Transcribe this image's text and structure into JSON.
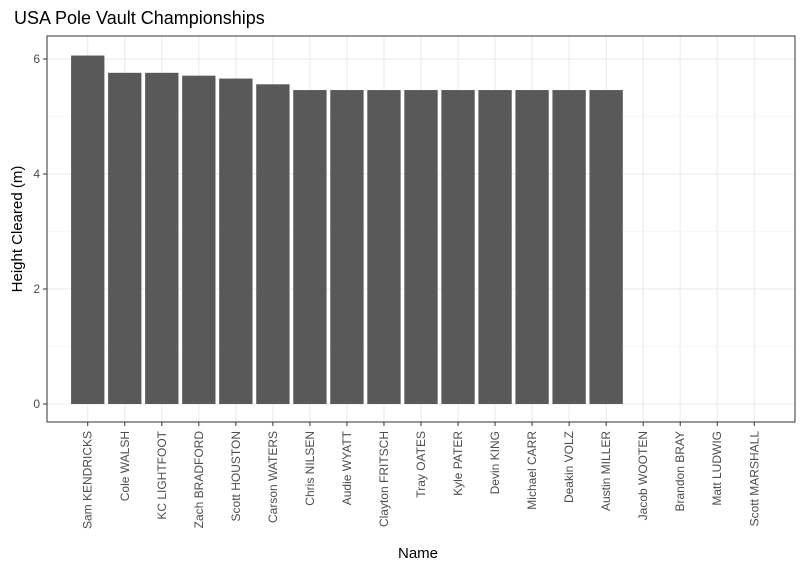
{
  "chart_data": {
    "type": "bar",
    "title": "USA Pole Vault Championships",
    "xlabel": "Name",
    "ylabel": "Height Cleared (m)",
    "categories": [
      "Sam KENDRICKS",
      "Cole WALSH",
      "KC LIGHTFOOT",
      "Zach BRADFORD",
      "Scott HOUSTON",
      "Carson WATERS",
      "Chris NILSEN",
      "Audie WYATT",
      "Clayton FRITSCH",
      "Tray OATES",
      "Kyle PATER",
      "Devin KING",
      "Michael CARR",
      "Deakin VOLZ",
      "Austin MILLER",
      "Jacob WOOTEN",
      "Brandon BRAY",
      "Matt LUDWIG",
      "Scott MARSHALL"
    ],
    "values": [
      6.06,
      5.76,
      5.76,
      5.71,
      5.66,
      5.56,
      5.46,
      5.46,
      5.46,
      5.46,
      5.46,
      5.46,
      5.46,
      5.46,
      5.46,
      0,
      0,
      0,
      0
    ],
    "ylim": [
      0,
      6.36
    ],
    "yticks": [
      0,
      2,
      4,
      6
    ],
    "grid": true,
    "bar_color": "#595959"
  }
}
